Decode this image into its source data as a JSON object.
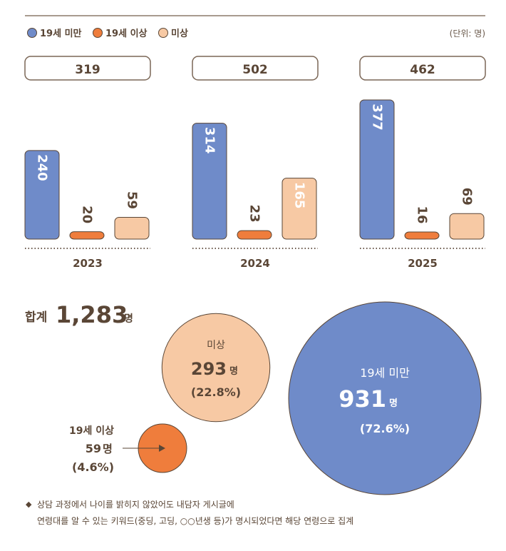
{
  "chart_data": [
    {
      "type": "bar",
      "unit_label": "(단위: 명)",
      "legend": {
        "placement": "top-left",
        "items": [
          {
            "name": "19세 미만",
            "color": "#6f8bc9"
          },
          {
            "name": "19세 이상",
            "color": "#ef7d3c"
          },
          {
            "name": "미상",
            "color": "#f7c9a4"
          }
        ]
      },
      "categories": [
        "2023",
        "2024",
        "2025"
      ],
      "totals": [
        "319",
        "502",
        "462"
      ],
      "series": [
        {
          "name": "19세 미만",
          "values": [
            240,
            314,
            377
          ]
        },
        {
          "name": "19세 이상",
          "values": [
            20,
            23,
            16
          ]
        },
        {
          "name": "미상",
          "values": [
            59,
            165,
            69
          ]
        }
      ],
      "ylim": [
        0,
        377
      ]
    },
    {
      "type": "bubble",
      "total_label": "합계",
      "total_value": "1,283",
      "total_unit": "명",
      "unit": "명",
      "items": [
        {
          "name": "19세 미만",
          "value": 931,
          "display_value": "931",
          "percent": "(72.6%)",
          "color": "#6f8bc9"
        },
        {
          "name": "미상",
          "value": 293,
          "display_value": "293",
          "percent": "(22.8%)",
          "color": "#f7c9a4"
        },
        {
          "name": "19세 이상",
          "value": 59,
          "display_value": "59",
          "percent": "(4.6%)",
          "color": "#ef7d3c"
        }
      ]
    }
  ],
  "footnote": {
    "bullet": "◆",
    "line1": "상담 과정에서 나이를 밝히지 않았어도 내담자 게시글에",
    "line2": "연령대를 알 수 있는 키워드(중딩, 고딩, ○○년생 등)가 명시되었다면 해당 연령으로 집계"
  }
}
